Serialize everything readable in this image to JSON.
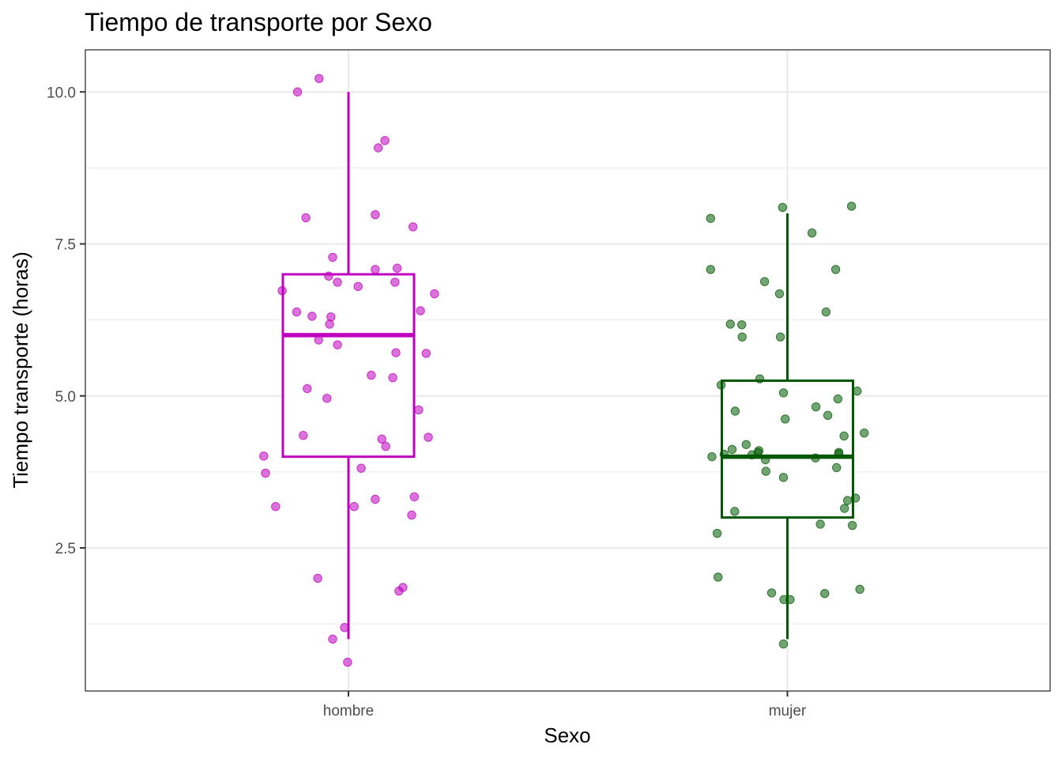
{
  "chart_data": {
    "type": "box",
    "title": "Tiempo de transporte por Sexo",
    "xlabel": "Sexo",
    "ylabel": "Tiempo transporte (horas)",
    "categories": [
      "hombre",
      "mujer"
    ],
    "ylim": [
      0.45,
      10.6
    ],
    "yticks": [
      2.5,
      5.0,
      7.5,
      10.0
    ],
    "ytick_labels": [
      "2.5",
      "5.0",
      "7.5",
      "10.0"
    ],
    "grid": true,
    "legend": "none",
    "series": [
      {
        "category": "hombre",
        "color": "#c000c0",
        "box": {
          "min": 1.0,
          "q1": 4.0,
          "median": 6.0,
          "q3": 7.0,
          "max": 10.0
        },
        "points": [
          {
            "x": -0.116,
            "y": 10.0
          },
          {
            "x": -0.067,
            "y": 10.22
          },
          {
            "x": 0.083,
            "y": 9.2
          },
          {
            "x": 0.068,
            "y": 9.08
          },
          {
            "x": -0.097,
            "y": 7.93
          },
          {
            "x": 0.061,
            "y": 7.98
          },
          {
            "x": 0.147,
            "y": 7.78
          },
          {
            "x": -0.036,
            "y": 7.28
          },
          {
            "x": 0.061,
            "y": 7.08
          },
          {
            "x": 0.111,
            "y": 7.1
          },
          {
            "x": -0.045,
            "y": 6.97
          },
          {
            "x": -0.025,
            "y": 6.87
          },
          {
            "x": 0.022,
            "y": 6.8
          },
          {
            "x": 0.106,
            "y": 6.87
          },
          {
            "x": -0.151,
            "y": 6.73
          },
          {
            "x": 0.196,
            "y": 6.68
          },
          {
            "x": -0.118,
            "y": 6.38
          },
          {
            "x": -0.083,
            "y": 6.31
          },
          {
            "x": -0.04,
            "y": 6.3
          },
          {
            "x": -0.043,
            "y": 6.18
          },
          {
            "x": 0.164,
            "y": 6.4
          },
          {
            "x": -0.068,
            "y": 5.92
          },
          {
            "x": -0.025,
            "y": 5.84
          },
          {
            "x": 0.108,
            "y": 5.71
          },
          {
            "x": 0.177,
            "y": 5.7
          },
          {
            "x": 0.052,
            "y": 5.34
          },
          {
            "x": 0.101,
            "y": 5.3
          },
          {
            "x": -0.094,
            "y": 5.12
          },
          {
            "x": -0.049,
            "y": 4.96
          },
          {
            "x": 0.16,
            "y": 4.77
          },
          {
            "x": -0.103,
            "y": 4.35
          },
          {
            "x": 0.076,
            "y": 4.29
          },
          {
            "x": 0.085,
            "y": 4.17
          },
          {
            "x": 0.182,
            "y": 4.32
          },
          {
            "x": -0.193,
            "y": 4.01
          },
          {
            "x": -0.189,
            "y": 3.73
          },
          {
            "x": 0.029,
            "y": 3.81
          },
          {
            "x": -0.166,
            "y": 3.18
          },
          {
            "x": 0.013,
            "y": 3.18
          },
          {
            "x": 0.061,
            "y": 3.3
          },
          {
            "x": 0.15,
            "y": 3.34
          },
          {
            "x": 0.144,
            "y": 3.04
          },
          {
            "x": -0.07,
            "y": 2.0
          },
          {
            "x": 0.124,
            "y": 1.85
          },
          {
            "x": 0.115,
            "y": 1.79
          },
          {
            "x": -0.009,
            "y": 1.19
          },
          {
            "x": -0.036,
            "y": 1.0
          },
          {
            "x": -0.002,
            "y": 0.62
          }
        ]
      },
      {
        "category": "mujer",
        "color": "#005900",
        "box": {
          "min": 1.0,
          "q1": 3.0,
          "median": 4.0,
          "q3": 5.25,
          "max": 8.0
        },
        "points": [
          {
            "x": -0.175,
            "y": 7.92
          },
          {
            "x": -0.011,
            "y": 8.1
          },
          {
            "x": 0.146,
            "y": 8.12
          },
          {
            "x": 0.056,
            "y": 7.68
          },
          {
            "x": -0.175,
            "y": 7.08
          },
          {
            "x": 0.11,
            "y": 7.08
          },
          {
            "x": -0.052,
            "y": 6.88
          },
          {
            "x": -0.018,
            "y": 6.68
          },
          {
            "x": 0.088,
            "y": 6.38
          },
          {
            "x": -0.13,
            "y": 6.18
          },
          {
            "x": -0.104,
            "y": 6.17
          },
          {
            "x": -0.103,
            "y": 5.97
          },
          {
            "x": -0.016,
            "y": 5.97
          },
          {
            "x": -0.063,
            "y": 5.28
          },
          {
            "x": -0.151,
            "y": 5.18
          },
          {
            "x": -0.009,
            "y": 5.05
          },
          {
            "x": 0.159,
            "y": 5.08
          },
          {
            "x": 0.115,
            "y": 4.95
          },
          {
            "x": 0.065,
            "y": 4.82
          },
          {
            "x": -0.119,
            "y": 4.75
          },
          {
            "x": 0.092,
            "y": 4.68
          },
          {
            "x": -0.005,
            "y": 4.62
          },
          {
            "x": 0.129,
            "y": 4.34
          },
          {
            "x": 0.175,
            "y": 4.39
          },
          {
            "x": -0.094,
            "y": 4.2
          },
          {
            "x": -0.126,
            "y": 4.12
          },
          {
            "x": -0.065,
            "y": 4.1
          },
          {
            "x": -0.067,
            "y": 4.07
          },
          {
            "x": -0.144,
            "y": 4.04
          },
          {
            "x": -0.081,
            "y": 4.03
          },
          {
            "x": -0.172,
            "y": 4.0
          },
          {
            "x": 0.064,
            "y": 3.98
          },
          {
            "x": 0.117,
            "y": 4.07
          },
          {
            "x": 0.117,
            "y": 4.05
          },
          {
            "x": -0.05,
            "y": 3.95
          },
          {
            "x": 0.112,
            "y": 3.82
          },
          {
            "x": -0.049,
            "y": 3.76
          },
          {
            "x": -0.009,
            "y": 3.66
          },
          {
            "x": 0.155,
            "y": 3.32
          },
          {
            "x": 0.137,
            "y": 3.28
          },
          {
            "x": 0.13,
            "y": 3.15
          },
          {
            "x": -0.12,
            "y": 3.1
          },
          {
            "x": 0.075,
            "y": 2.89
          },
          {
            "x": 0.148,
            "y": 2.87
          },
          {
            "x": -0.16,
            "y": 2.74
          },
          {
            "x": -0.158,
            "y": 2.02
          },
          {
            "x": 0.165,
            "y": 1.82
          },
          {
            "x": -0.036,
            "y": 1.76
          },
          {
            "x": 0.085,
            "y": 1.75
          },
          {
            "x": -0.008,
            "y": 1.65
          },
          {
            "x": 0.006,
            "y": 1.65
          },
          {
            "x": -0.009,
            "y": 0.92
          }
        ]
      }
    ]
  }
}
